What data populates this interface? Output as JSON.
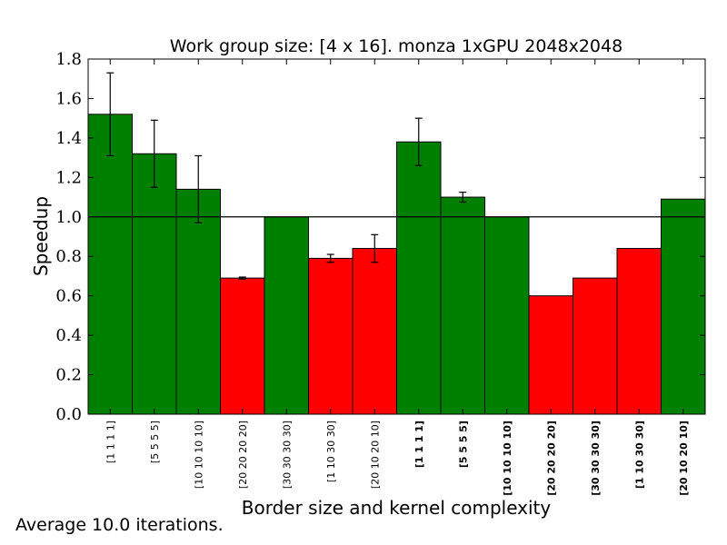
{
  "chart_data": {
    "type": "bar",
    "title": "Work group size: [4 x 16]. monza 1xGPU 2048x2048",
    "xlabel": "Border size and kernel complexity",
    "ylabel": "Speedup",
    "ylim": [
      0.0,
      1.8
    ],
    "yticks": [
      "0.0",
      "0.2",
      "0.4",
      "0.6",
      "0.8",
      "1.0",
      "1.2",
      "1.4",
      "1.6",
      "1.8"
    ],
    "reference_line": 1.0,
    "grid": false,
    "categories": [
      "[1 1 1 1]",
      "[5 5 5 5]",
      "[10 10 10 10]",
      "[20 20 20 20]",
      "[30 30 30 30]",
      "[1 10 30 30]",
      "[20 10 20 10]",
      "[1 1 1 1]",
      "[5 5 5 5]",
      "[10 10 10 10]",
      "[20 20 20 20]",
      "[30 30 30 30]",
      "[1 10 30 30]",
      "[20 10 20 10]"
    ],
    "category_bold": [
      false,
      false,
      false,
      false,
      false,
      false,
      false,
      true,
      true,
      true,
      true,
      true,
      true,
      true
    ],
    "values": [
      1.52,
      1.32,
      1.14,
      0.69,
      1.0,
      0.79,
      0.84,
      1.38,
      1.1,
      1.0,
      0.6,
      0.69,
      0.84,
      1.09
    ],
    "errors": [
      0.21,
      0.17,
      0.17,
      0.005,
      0.0,
      0.02,
      0.07,
      0.12,
      0.025,
      0.0,
      0.0,
      0.0,
      0.0,
      0.0
    ],
    "colors": {
      "above": "#008000",
      "below": "#ff0000"
    }
  },
  "footnote": "Average 10.0 iterations."
}
